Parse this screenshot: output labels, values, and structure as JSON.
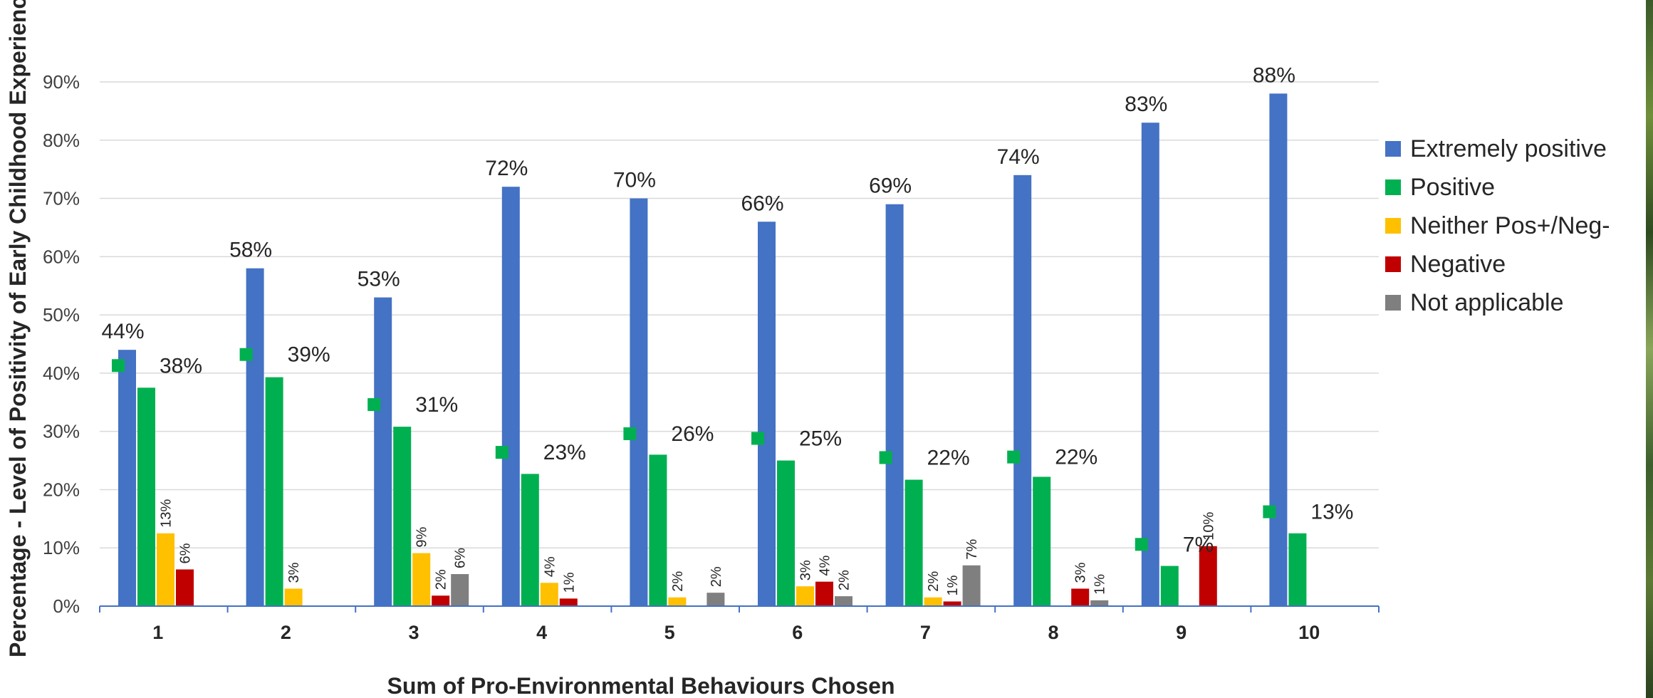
{
  "chart_data": {
    "type": "bar",
    "title": "",
    "xlabel": "Sum of Pro-Environmental Behaviours Chosen",
    "ylabel": "Percentage - Level of Positivity of Early Childhood Experience",
    "ylim": [
      0,
      90
    ],
    "yticks": [
      0,
      10,
      20,
      30,
      40,
      50,
      60,
      70,
      80,
      90
    ],
    "ytick_labels": [
      "0%",
      "10%",
      "20%",
      "30%",
      "40%",
      "50%",
      "60%",
      "70%",
      "80%",
      "90%"
    ],
    "grid": true,
    "legend_position": "right",
    "categories": [
      "1",
      "2",
      "3",
      "4",
      "5",
      "6",
      "7",
      "8",
      "9",
      "10"
    ],
    "series": [
      {
        "name": "Extremely positive",
        "color": "#4472c4",
        "values": [
          44,
          58,
          53,
          72,
          70,
          66,
          69,
          74,
          83,
          88
        ],
        "labels": [
          "44%",
          "58%",
          "53%",
          "72%",
          "70%",
          "66%",
          "69%",
          "74%",
          "83%",
          "88%"
        ]
      },
      {
        "name": "Positive",
        "color": "#00b050",
        "values": [
          37.5,
          39.3,
          30.8,
          22.7,
          26,
          25,
          21.7,
          22.2,
          6.9,
          12.5
        ],
        "labels": [
          "38%",
          "39%",
          "31%",
          "23%",
          "26%",
          "25%",
          "22%",
          "22%",
          "7%",
          "13%"
        ]
      },
      {
        "name": "Neither Pos+/Neg-",
        "color": "#ffc000",
        "values": [
          12.5,
          3,
          9.1,
          4,
          1.5,
          3.4,
          1.5,
          0,
          0,
          0
        ],
        "labels": [
          "13%",
          "3%",
          "9%",
          "4%",
          "2%",
          "3%",
          "2%",
          null,
          null,
          null
        ]
      },
      {
        "name": "Negative",
        "color": "#c00000",
        "values": [
          6.3,
          0,
          1.8,
          1.3,
          0,
          4.2,
          0.8,
          3,
          10.3,
          0
        ],
        "labels": [
          "6%",
          null,
          "2%",
          "1%",
          null,
          "4%",
          "1%",
          "3%",
          "10%",
          null
        ]
      },
      {
        "name": "Not applicable",
        "color": "#7f7f7f",
        "values": [
          0,
          0,
          5.5,
          0,
          2.3,
          1.7,
          7,
          1,
          0,
          0
        ],
        "labels": [
          null,
          null,
          "6%",
          null,
          "2%",
          "2%",
          "7%",
          "1%",
          null,
          null
        ]
      }
    ],
    "marker": {
      "color": "#00b050",
      "values": [
        41.3,
        43.2,
        34.6,
        26.4,
        29.6,
        28.8,
        25.5,
        25.6,
        10.6,
        16.2
      ]
    }
  }
}
